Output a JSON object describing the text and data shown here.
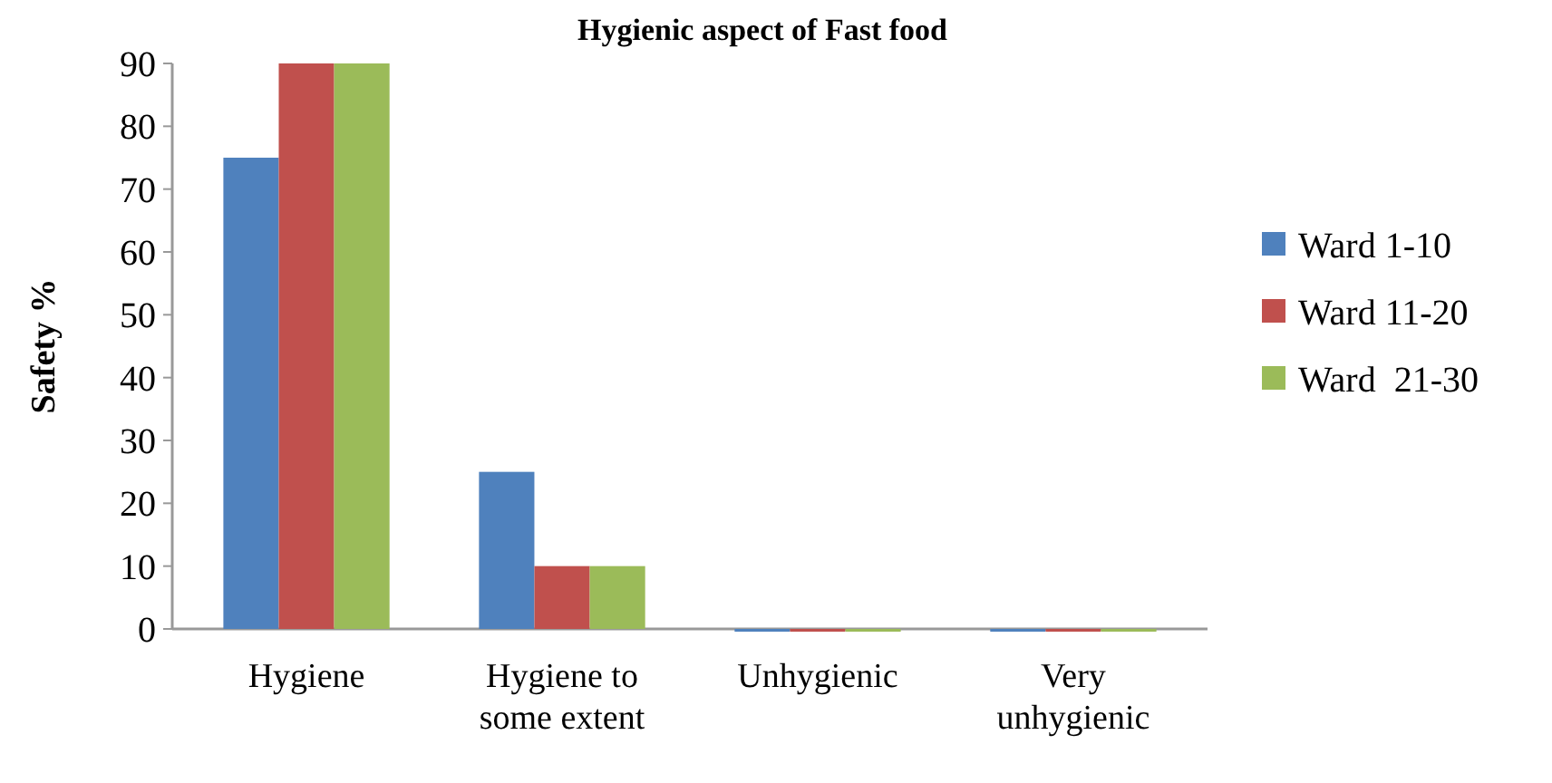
{
  "chart_data": {
    "type": "bar",
    "title": "Hygienic aspect of Fast food",
    "ylabel": "Safety  %",
    "categories": [
      "Hygiene",
      "Hygiene to some extent",
      "Unhygienic",
      "Very unhygienic"
    ],
    "series": [
      {
        "name": "Ward 1-10",
        "color": "#4f81bd",
        "values": [
          75,
          25,
          0,
          0
        ]
      },
      {
        "name": "Ward 11-20",
        "color": "#c0504d",
        "values": [
          90,
          10,
          0,
          0
        ]
      },
      {
        "name": "Ward  21-30",
        "color": "#9bbb59",
        "values": [
          90,
          10,
          0,
          0
        ]
      }
    ],
    "ylim": [
      0,
      90
    ],
    "yticks": [
      0,
      10,
      20,
      30,
      40,
      50,
      60,
      70,
      80,
      90
    ],
    "grid": false,
    "legend": "right"
  }
}
